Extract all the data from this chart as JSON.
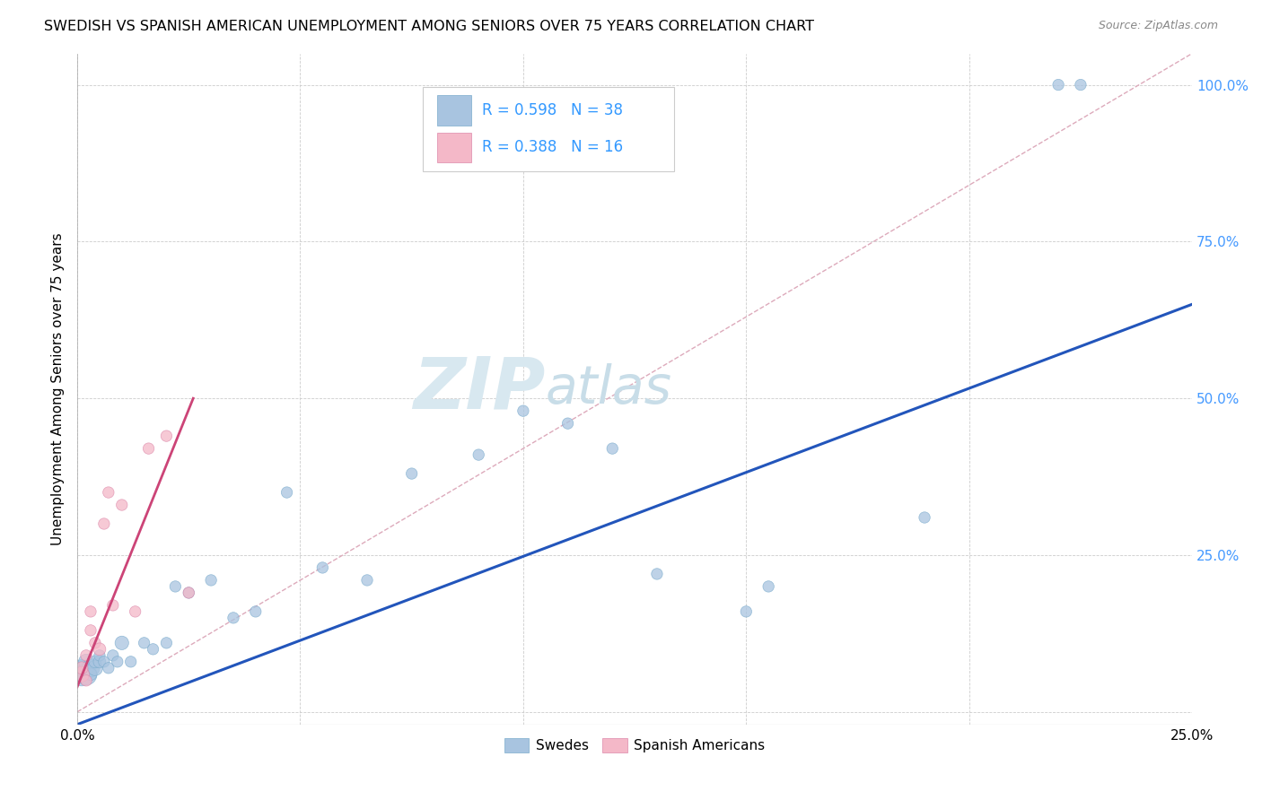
{
  "title": "SWEDISH VS SPANISH AMERICAN UNEMPLOYMENT AMONG SENIORS OVER 75 YEARS CORRELATION CHART",
  "source": "Source: ZipAtlas.com",
  "ylabel": "Unemployment Among Seniors over 75 years",
  "xlim": [
    0.0,
    0.25
  ],
  "ylim": [
    -0.02,
    1.05
  ],
  "blue_R": 0.598,
  "blue_N": 38,
  "pink_R": 0.388,
  "pink_N": 16,
  "blue_color": "#a8c4e0",
  "pink_color": "#f4b8c8",
  "blue_line_color": "#2255bb",
  "pink_line_color": "#cc4477",
  "diag_line_color": "#ddaabb",
  "legend_text_color": "#3399ff",
  "watermark_color": "#d8e8f0",
  "swedes_x": [
    0.001,
    0.001,
    0.002,
    0.002,
    0.003,
    0.003,
    0.004,
    0.004,
    0.005,
    0.005,
    0.006,
    0.007,
    0.008,
    0.009,
    0.01,
    0.012,
    0.015,
    0.017,
    0.02,
    0.022,
    0.025,
    0.03,
    0.035,
    0.04,
    0.047,
    0.055,
    0.065,
    0.075,
    0.09,
    0.1,
    0.11,
    0.12,
    0.13,
    0.15,
    0.155,
    0.19,
    0.22,
    0.225
  ],
  "swedes_y": [
    0.06,
    0.07,
    0.06,
    0.08,
    0.07,
    0.06,
    0.07,
    0.08,
    0.08,
    0.09,
    0.08,
    0.07,
    0.09,
    0.08,
    0.11,
    0.08,
    0.11,
    0.1,
    0.11,
    0.2,
    0.19,
    0.21,
    0.15,
    0.16,
    0.35,
    0.23,
    0.21,
    0.38,
    0.41,
    0.48,
    0.46,
    0.42,
    0.22,
    0.16,
    0.2,
    0.31,
    1.0,
    1.0
  ],
  "swedes_size_scale": [
    350,
    180,
    300,
    150,
    200,
    100,
    150,
    100,
    100,
    80,
    80,
    80,
    80,
    80,
    120,
    80,
    80,
    80,
    80,
    80,
    80,
    80,
    80,
    80,
    80,
    80,
    80,
    80,
    80,
    80,
    80,
    80,
    80,
    80,
    80,
    80,
    80,
    80
  ],
  "spanish_x": [
    0.001,
    0.001,
    0.002,
    0.002,
    0.003,
    0.003,
    0.004,
    0.005,
    0.006,
    0.007,
    0.008,
    0.01,
    0.013,
    0.016,
    0.02,
    0.025
  ],
  "spanish_y": [
    0.06,
    0.07,
    0.05,
    0.09,
    0.13,
    0.16,
    0.11,
    0.1,
    0.3,
    0.35,
    0.17,
    0.33,
    0.16,
    0.42,
    0.44,
    0.19
  ],
  "spanish_size_scale": [
    150,
    100,
    80,
    80,
    80,
    80,
    80,
    100,
    80,
    80,
    80,
    80,
    80,
    80,
    80,
    80
  ],
  "blue_line_x": [
    0.0,
    0.25
  ],
  "blue_line_y": [
    -0.02,
    0.65
  ],
  "pink_line_x": [
    0.0,
    0.026
  ],
  "pink_line_y": [
    0.04,
    0.5
  ]
}
